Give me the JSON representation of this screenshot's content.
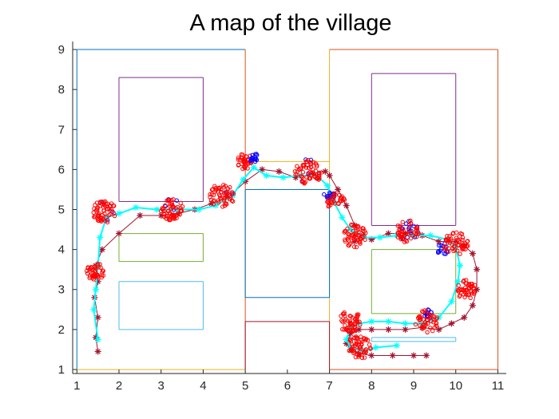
{
  "chart_data": {
    "type": "scatter",
    "title": "A map of the village",
    "xlabel": "",
    "ylabel": "",
    "xlim": [
      0.9,
      11.2
    ],
    "ylim": [
      0.9,
      9.2
    ],
    "xticks": [
      1,
      2,
      3,
      4,
      5,
      6,
      7,
      8,
      9,
      10,
      11
    ],
    "yticks": [
      1,
      2,
      3,
      4,
      5,
      6,
      7,
      8,
      9
    ],
    "grid": false,
    "legend": "none",
    "rectangles": [
      {
        "x0": 1,
        "y0": 1,
        "x1": 5,
        "y1": 9,
        "edges": [
          {
            "side": "left",
            "color": "#0072BD"
          },
          {
            "side": "top",
            "color": "#0072BD"
          },
          {
            "side": "right",
            "color": "#D95319"
          },
          {
            "side": "bottom",
            "color": "#EDB120"
          }
        ]
      },
      {
        "x0": 7,
        "y0": 1,
        "x1": 11,
        "y1": 9,
        "edges": [
          {
            "side": "left",
            "color": "#EDB120"
          },
          {
            "side": "top",
            "color": "#D95319"
          },
          {
            "side": "right",
            "color": "#D95319"
          },
          {
            "side": "bottom",
            "color": "#D95319"
          }
        ]
      },
      {
        "x0": 2,
        "y0": 5.2,
        "x1": 4,
        "y1": 8.3,
        "color": "#7E2F8E"
      },
      {
        "x0": 8,
        "y0": 4.6,
        "x1": 10,
        "y1": 8.4,
        "color": "#7E2F8E"
      },
      {
        "x0": 2,
        "y0": 3.7,
        "x1": 4,
        "y1": 4.4,
        "color": "#77AC30"
      },
      {
        "x0": 8,
        "y0": 2.4,
        "x1": 10,
        "y1": 4.0,
        "color": "#77AC30"
      },
      {
        "x0": 2,
        "y0": 2.0,
        "x1": 4,
        "y1": 3.2,
        "color": "#4DBEEE"
      },
      {
        "x0": 8,
        "y0": 1.7,
        "x1": 10,
        "y1": 1.8,
        "color": "#4DBEEE"
      },
      {
        "x0": 5,
        "y0": 2.8,
        "x1": 7,
        "y1": 5.5,
        "color": "#0072BD"
      },
      {
        "x0": 5,
        "y0": 5.5,
        "x1": 7,
        "y1": 6.2,
        "color": "#EDB120",
        "sides": [
          "top"
        ]
      },
      {
        "x0": 5,
        "y0": 1,
        "x1": 7,
        "y1": 2.2,
        "color": "#A2142F",
        "sides": [
          "left",
          "top",
          "right"
        ]
      }
    ],
    "series": [
      {
        "marker": "asterisk-line",
        "color": "#A2142F",
        "x": [
          1.5,
          1.45,
          1.5,
          1.42,
          1.5,
          1.45,
          1.6,
          2.0,
          2.5,
          3.0,
          3.4,
          3.8,
          4.2,
          4.6,
          5.0,
          5.4,
          5.8,
          6.2,
          6.6,
          6.9,
          7.0,
          7.2,
          7.4,
          7.6,
          7.6,
          7.8,
          8.0,
          8.4,
          8.8,
          9.2,
          9.6,
          10.0,
          10.2,
          10.4,
          10.5,
          10.5,
          10.4,
          10.2,
          9.9,
          9.6,
          9.2,
          8.8,
          8.4,
          8.0,
          7.7,
          7.5,
          7.4,
          7.5,
          7.7,
          8.0,
          8.5,
          9.0,
          9.3
        ],
        "y": [
          1.45,
          1.8,
          2.3,
          2.8,
          3.2,
          3.6,
          4.0,
          4.4,
          4.85,
          4.85,
          4.9,
          5.0,
          5.15,
          5.3,
          5.7,
          6.0,
          5.95,
          5.8,
          5.9,
          5.95,
          5.85,
          5.5,
          5.1,
          4.6,
          4.2,
          4.35,
          4.25,
          4.4,
          4.4,
          4.35,
          4.2,
          4.2,
          4.1,
          3.9,
          3.5,
          3.0,
          2.6,
          2.3,
          2.15,
          2.0,
          2.05,
          2.0,
          2.0,
          2.0,
          2.0,
          1.9,
          1.65,
          1.5,
          1.4,
          1.35,
          1.35,
          1.35,
          1.35
        ]
      },
      {
        "marker": "asterisk-line",
        "color": "#00FFFF",
        "x": [
          1.5,
          1.4,
          1.45,
          1.5,
          1.55,
          1.7,
          2.0,
          2.4,
          2.9,
          3.4,
          3.9,
          4.3,
          4.7,
          4.95,
          5.2,
          5.5,
          5.9,
          6.3,
          6.7,
          6.95,
          7.1,
          7.3,
          7.5,
          7.8,
          8.2,
          8.6,
          9.0,
          9.4,
          9.8,
          10.0,
          10.1,
          10.05,
          9.9,
          9.6,
          9.2,
          8.8,
          8.4,
          8.0,
          7.7,
          7.5,
          7.4,
          7.5,
          7.8,
          8.1,
          8.6
        ],
        "y": [
          1.75,
          2.5,
          3.0,
          3.6,
          4.3,
          4.8,
          4.9,
          5.05,
          5.0,
          5.0,
          5.0,
          5.1,
          5.35,
          5.75,
          6.05,
          5.85,
          5.8,
          5.85,
          5.85,
          5.6,
          5.2,
          4.8,
          4.5,
          4.3,
          4.3,
          4.35,
          4.35,
          4.35,
          4.25,
          4.05,
          3.6,
          3.2,
          2.7,
          2.3,
          2.15,
          2.15,
          2.2,
          2.2,
          2.15,
          2.05,
          1.75,
          1.55,
          1.45,
          1.55,
          1.6
        ]
      }
    ],
    "clusters": [
      {
        "cx": 1.45,
        "cy": 3.45,
        "r": 0.22,
        "red": 45,
        "blue": 0
      },
      {
        "cx": 1.65,
        "cy": 4.95,
        "r": 0.28,
        "red": 60,
        "blue": 3
      },
      {
        "cx": 3.25,
        "cy": 5.0,
        "r": 0.27,
        "red": 55,
        "blue": 4
      },
      {
        "cx": 4.45,
        "cy": 5.35,
        "r": 0.3,
        "red": 55,
        "blue": 2
      },
      {
        "cx": 5.0,
        "cy": 6.2,
        "r": 0.2,
        "red": 35,
        "blue": 0
      },
      {
        "cx": 5.2,
        "cy": 6.3,
        "r": 0.12,
        "red": 0,
        "blue": 14
      },
      {
        "cx": 6.5,
        "cy": 5.95,
        "r": 0.32,
        "red": 60,
        "blue": 4
      },
      {
        "cx": 7.0,
        "cy": 5.4,
        "r": 0.14,
        "red": 0,
        "blue": 14
      },
      {
        "cx": 7.15,
        "cy": 5.2,
        "r": 0.22,
        "red": 30,
        "blue": 0
      },
      {
        "cx": 7.6,
        "cy": 4.35,
        "r": 0.3,
        "red": 55,
        "blue": 0
      },
      {
        "cx": 8.85,
        "cy": 4.45,
        "r": 0.28,
        "red": 45,
        "blue": 14
      },
      {
        "cx": 9.7,
        "cy": 4.0,
        "r": 0.16,
        "red": 0,
        "blue": 14
      },
      {
        "cx": 10.0,
        "cy": 4.15,
        "r": 0.3,
        "red": 55,
        "blue": 0
      },
      {
        "cx": 10.25,
        "cy": 3.0,
        "r": 0.24,
        "red": 45,
        "blue": 0
      },
      {
        "cx": 9.3,
        "cy": 2.4,
        "r": 0.14,
        "red": 0,
        "blue": 14
      },
      {
        "cx": 9.3,
        "cy": 2.2,
        "r": 0.28,
        "red": 45,
        "blue": 0
      },
      {
        "cx": 7.5,
        "cy": 2.2,
        "r": 0.28,
        "red": 55,
        "blue": 0
      },
      {
        "cx": 7.7,
        "cy": 1.55,
        "r": 0.3,
        "red": 60,
        "blue": 0
      }
    ]
  }
}
